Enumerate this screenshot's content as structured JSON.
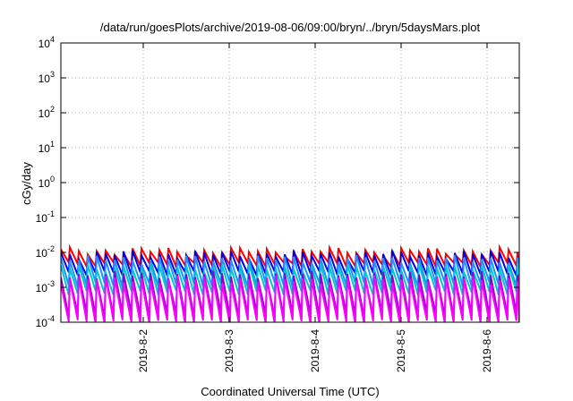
{
  "chart_data": {
    "type": "line",
    "title": "/data/run/goesPlots/archive/2019-08-06/09:00/bryn/../bryn/5daysMars.plot",
    "xlabel": "Coordinated Universal Time (UTC)",
    "ylabel": "cGy/day",
    "yscale": "log",
    "ylim": [
      0.0001,
      10000
    ],
    "yticks": [
      {
        "value": 0.0001,
        "base": "10",
        "exp": "-4"
      },
      {
        "value": 0.001,
        "base": "10",
        "exp": "-3"
      },
      {
        "value": 0.01,
        "base": "10",
        "exp": "-2"
      },
      {
        "value": 0.1,
        "base": "10",
        "exp": "-1"
      },
      {
        "value": 1,
        "base": "10",
        "exp": "0"
      },
      {
        "value": 10,
        "base": "10",
        "exp": "1"
      },
      {
        "value": 100,
        "base": "10",
        "exp": "2"
      },
      {
        "value": 1000,
        "base": "10",
        "exp": "3"
      },
      {
        "value": 10000,
        "base": "10",
        "exp": "4"
      }
    ],
    "xlim": [
      "2019-08-01 01:00",
      "2019-08-06 09:00"
    ],
    "xticks": [
      "2019-8-2",
      "2019-8-3",
      "2019-8-4",
      "2019-8-5",
      "2019-8-6"
    ],
    "grid": true,
    "oscillation": {
      "start": "2019-08-01 01:00",
      "end": "2019-08-06 09:00",
      "peak_every_hours": 2.5
    },
    "series": [
      {
        "color": "#ff0000",
        "peak": 0.011,
        "trough": 0.0045
      },
      {
        "color": "#0000e0",
        "peak": 0.009,
        "trough": 0.0025
      },
      {
        "color": "#1e90ff",
        "peak": 0.0065,
        "trough": 0.0012
      },
      {
        "color": "#00c8c8",
        "peak": 0.0038,
        "trough": 0.0007
      },
      {
        "color": "#9400d3",
        "peak": 0.0023,
        "trough": 0.00016
      },
      {
        "color": "#ff00ff",
        "peak": 0.0017,
        "trough": 0.0001
      }
    ]
  }
}
